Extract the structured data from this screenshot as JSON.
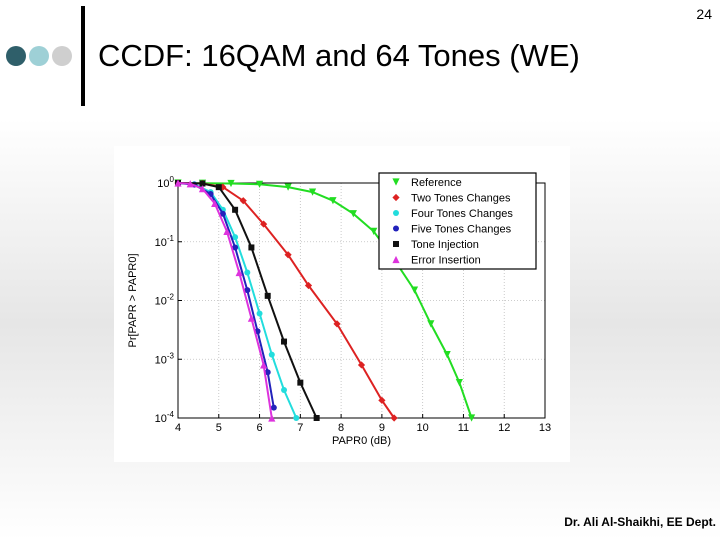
{
  "page_number": "24",
  "slide_title": "CCDF: 16QAM and 64 Tones (WE)",
  "footer": "Dr. Ali Al-Shaikhi, EE Dept.",
  "bullet_colors": [
    "#2f5f6a",
    "#9ed0d6",
    "#cfcfcf"
  ],
  "chart_data": {
    "type": "line",
    "title": "",
    "xlabel": "PAPR0 (dB)",
    "ylabel": "Pr[PAPR > PAPR0]",
    "xlim": [
      4,
      13
    ],
    "ylim": [
      0.0001,
      1
    ],
    "yscale": "log",
    "x_ticks": [
      "4",
      "5",
      "6",
      "7",
      "8",
      "9",
      "10",
      "11",
      "12",
      "13"
    ],
    "y_ticks": [
      "10^0",
      "10^-1",
      "10^-2",
      "10^-3",
      "10^-4"
    ],
    "grid": true,
    "legend_position": "top-right",
    "series": [
      {
        "name": "Reference",
        "color": "#22dd22",
        "marker": "triangle-down",
        "x": [
          4,
          4.6,
          5.3,
          6,
          6.7,
          7.3,
          7.8,
          8.3,
          8.8,
          9.3,
          9.8,
          10.2,
          10.6,
          10.9,
          11.2
        ],
        "y": [
          1,
          0.99,
          0.98,
          0.95,
          0.85,
          0.7,
          0.5,
          0.3,
          0.15,
          0.05,
          0.015,
          0.004,
          0.0012,
          0.0004,
          0.0001
        ]
      },
      {
        "name": "Two Tones Changes",
        "color": "#dd2222",
        "marker": "diamond",
        "x": [
          4,
          4.6,
          5.1,
          5.6,
          6.1,
          6.7,
          7.2,
          7.9,
          8.5,
          9,
          9.3
        ],
        "y": [
          1,
          0.98,
          0.85,
          0.5,
          0.2,
          0.06,
          0.018,
          0.004,
          0.0008,
          0.0002,
          0.0001
        ]
      },
      {
        "name": "Four Tones Changes",
        "color": "#22dddd",
        "marker": "circle",
        "x": [
          4,
          4.4,
          4.8,
          5.1,
          5.4,
          5.7,
          6,
          6.3,
          6.6,
          6.9
        ],
        "y": [
          1,
          0.95,
          0.7,
          0.35,
          0.12,
          0.03,
          0.006,
          0.0012,
          0.0003,
          0.0001
        ]
      },
      {
        "name": "Five Tones Changes",
        "color": "#2222bb",
        "marker": "circle",
        "x": [
          4,
          4.4,
          4.8,
          5.1,
          5.4,
          5.7,
          5.95,
          6.2,
          6.35
        ],
        "y": [
          1,
          0.94,
          0.65,
          0.3,
          0.08,
          0.015,
          0.003,
          0.0006,
          0.00015
        ]
      },
      {
        "name": "Tone Injection",
        "color": "#111111",
        "marker": "square",
        "x": [
          4,
          4.6,
          5,
          5.4,
          5.8,
          6.2,
          6.6,
          7,
          7.4
        ],
        "y": [
          1,
          0.98,
          0.85,
          0.35,
          0.08,
          0.012,
          0.002,
          0.0004,
          0.0001
        ]
      },
      {
        "name": "Error Insertion",
        "color": "#dd33dd",
        "marker": "triangle-up",
        "x": [
          4,
          4.3,
          4.6,
          4.9,
          5.2,
          5.5,
          5.8,
          6.1,
          6.3
        ],
        "y": [
          1,
          0.97,
          0.8,
          0.45,
          0.15,
          0.03,
          0.005,
          0.0008,
          0.0001
        ]
      }
    ]
  }
}
